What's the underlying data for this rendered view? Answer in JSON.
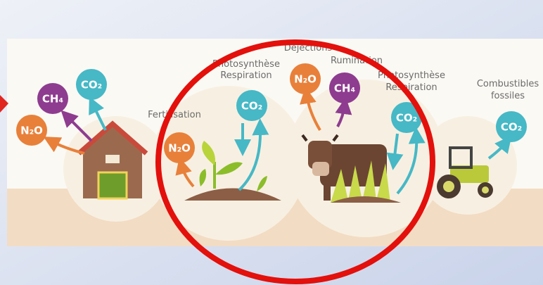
{
  "captions": [
    [
      "Fertilisation"
    ],
    [
      "Photosynthèse",
      "Respiration"
    ],
    [
      "Déjections"
    ],
    [
      "Rumination"
    ],
    [
      "Photosynthèse",
      "Respiration"
    ],
    [
      "Combustibles",
      "fossiles"
    ]
  ],
  "gases": [
    "N₂O",
    "CH₄",
    "CO₂",
    "N₂O",
    "CO₂",
    "N₂O",
    "CH₄",
    "CO₂",
    "CO₂"
  ]
}
